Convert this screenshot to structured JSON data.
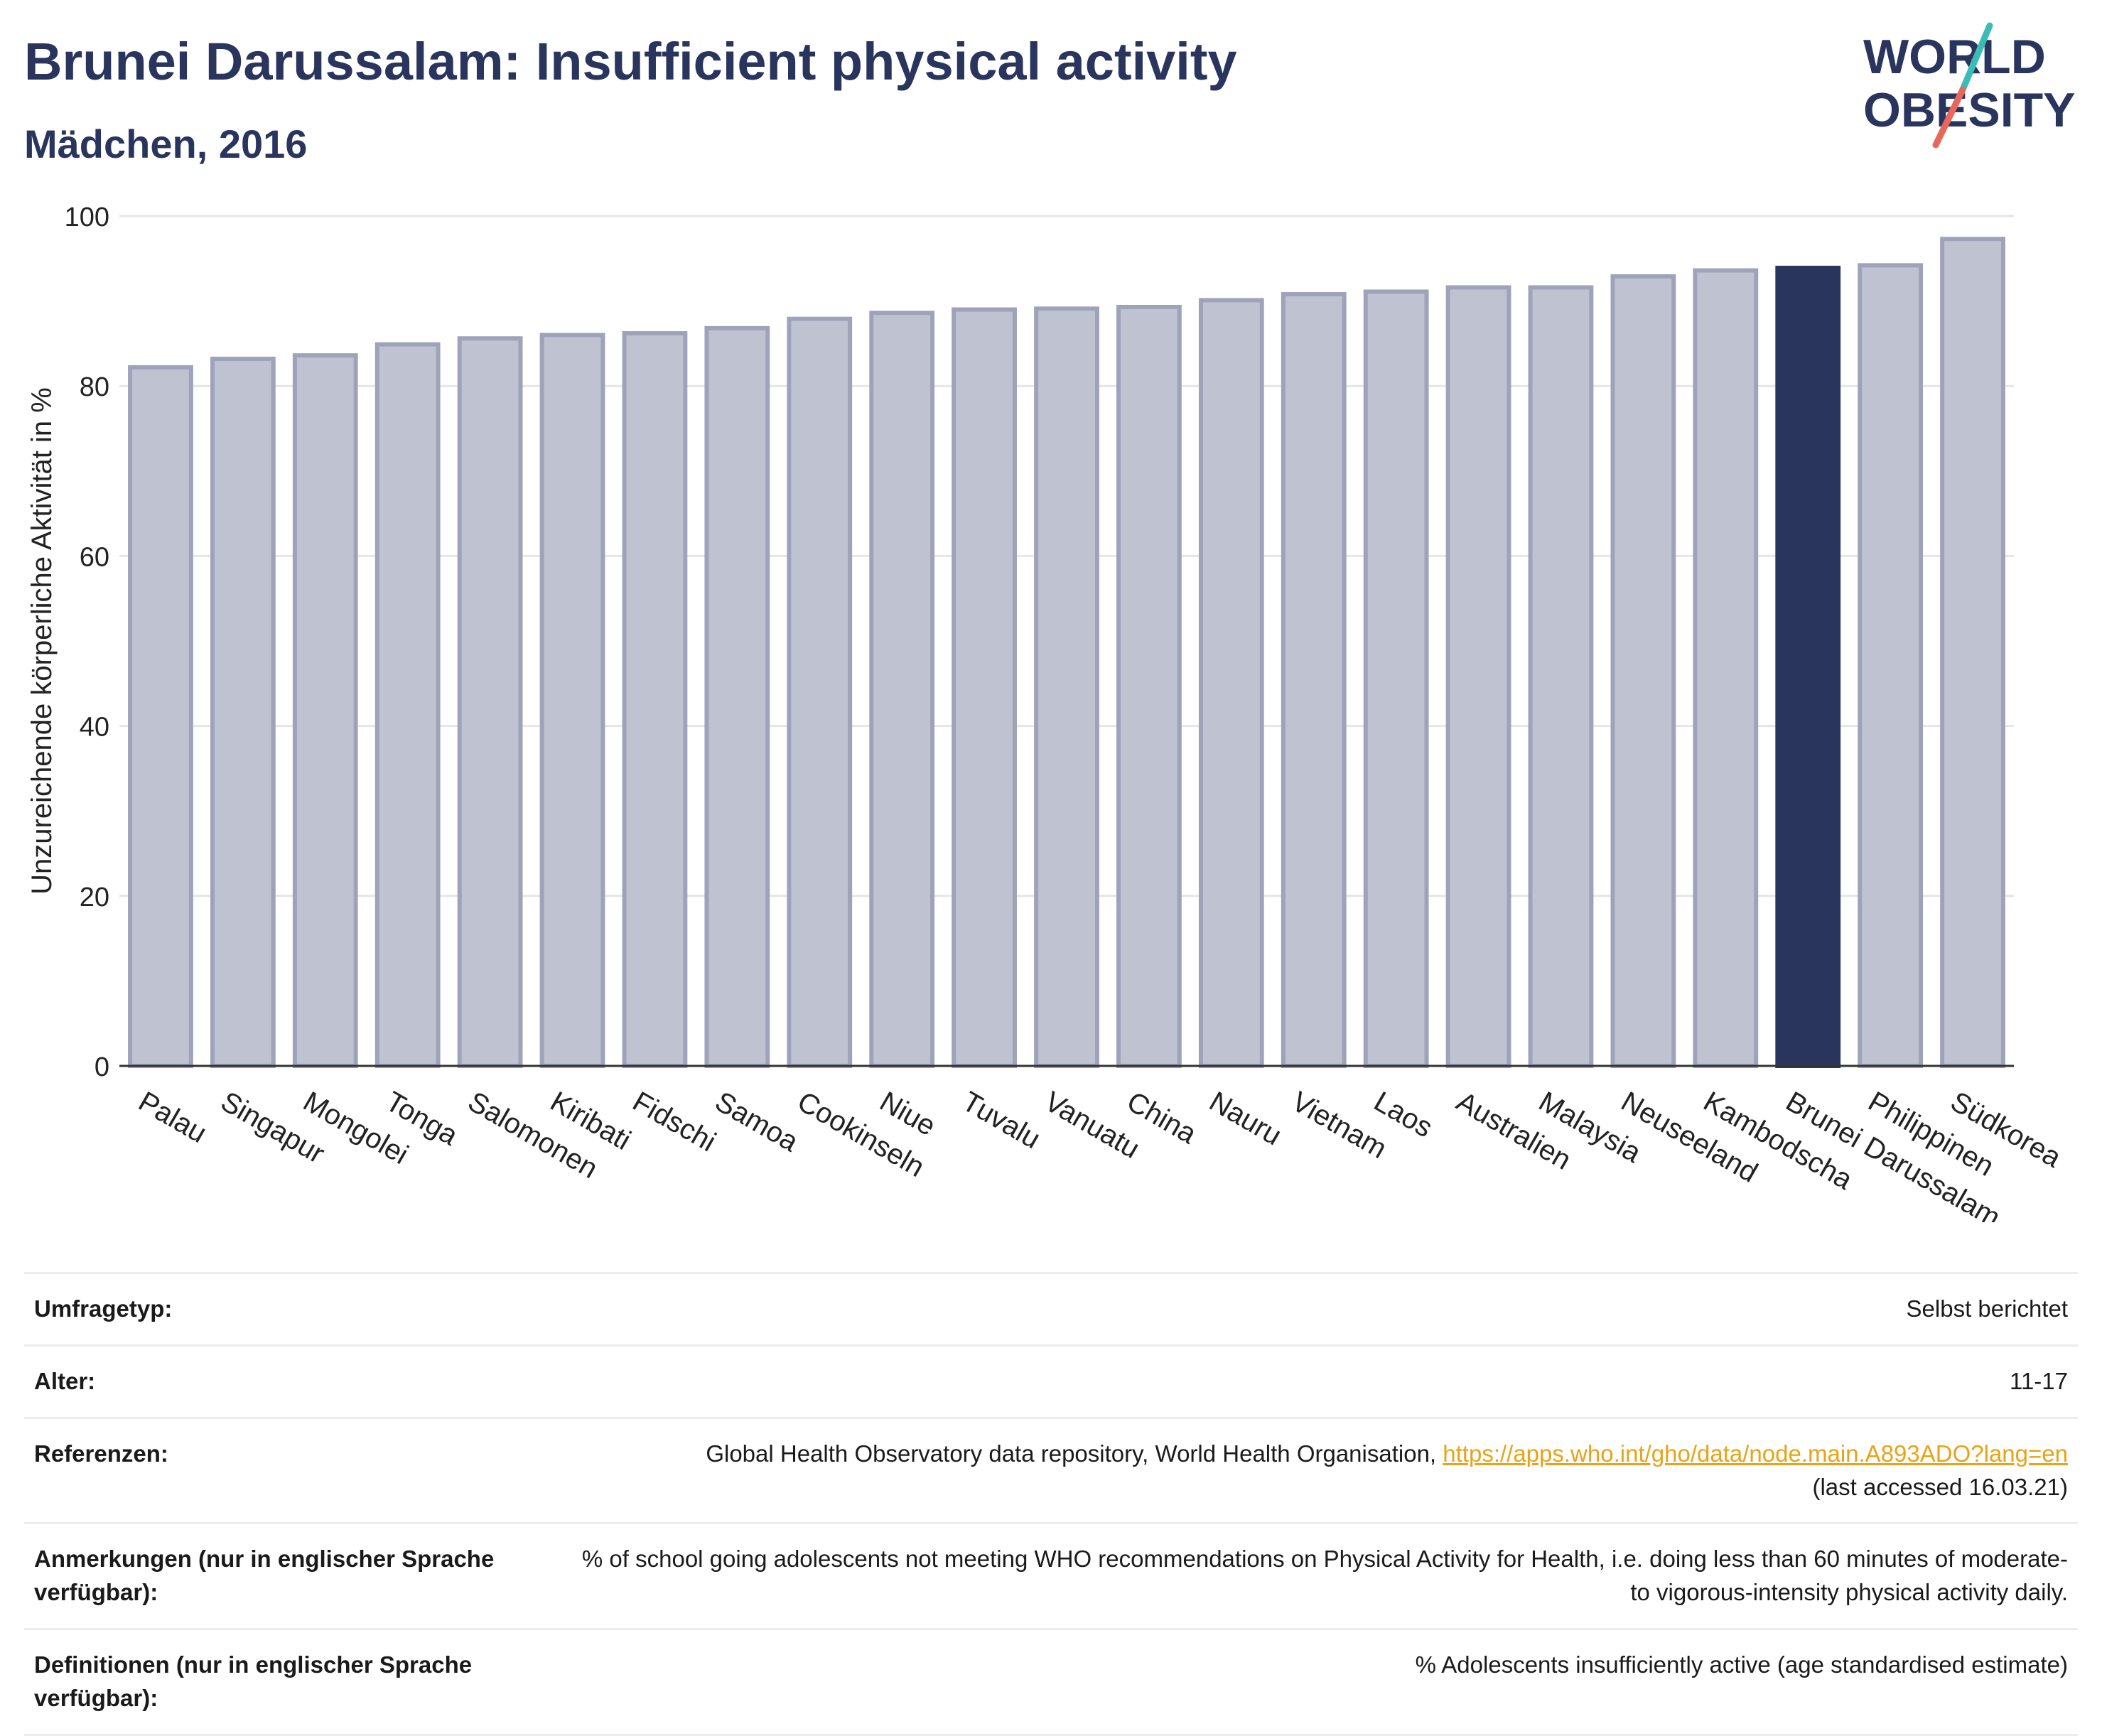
{
  "title": "Brunei Darussalam: Insufficient physical activity",
  "subtitle": "Mädchen, 2016",
  "logo": {
    "line1": "WORLD",
    "line2": "OBESITY",
    "colors": {
      "text": "#2a355e",
      "slash_top": "#3bbdb5",
      "slash_bottom": "#e8675a"
    }
  },
  "colors": {
    "bar_default": "#bfc3d1",
    "bar_border": "#9ea3ba",
    "bar_highlight": "#2a355e",
    "grid": "#e6e6ea",
    "axis": "#333333",
    "link": "#e8a317"
  },
  "chart_data": {
    "type": "bar",
    "title": "Brunei Darussalam: Insufficient physical activity",
    "subtitle": "Mädchen, 2016",
    "xlabel": "",
    "ylabel": "Unzureichende körperliche Aktivität in %",
    "ylim": [
      0,
      100
    ],
    "yticks": [
      0,
      20,
      40,
      60,
      80,
      100
    ],
    "grid": true,
    "highlight": "Brunei Darussalam",
    "categories": [
      "Palau",
      "Singapur",
      "Mongolei",
      "Tonga",
      "Salomonen",
      "Kiribati",
      "Fidschi",
      "Samoa",
      "Cookinseln",
      "Niue",
      "Tuvalu",
      "Vanuatu",
      "China",
      "Nauru",
      "Vietnam",
      "Laos",
      "Australien",
      "Malaysia",
      "Neuseeland",
      "Kambodscha",
      "Brunei Darussalam",
      "Philippinen",
      "Südkorea"
    ],
    "values": [
      82.2,
      83.2,
      83.6,
      84.9,
      85.6,
      86.0,
      86.2,
      86.8,
      87.9,
      88.6,
      89.0,
      89.1,
      89.3,
      90.1,
      90.8,
      91.1,
      91.6,
      91.6,
      92.9,
      93.6,
      93.9,
      94.2,
      97.3
    ]
  },
  "info": {
    "rows": [
      {
        "label": "Umfragetyp:",
        "value": "Selbst berichtet"
      },
      {
        "label": "Alter:",
        "value": "11-17"
      },
      {
        "label": "Referenzen:",
        "value_prefix": "Global Health Observatory data repository, World Health Organisation, ",
        "link": "https://apps.who.int/gho/data/node.main.A893ADO?lang=en",
        "value_suffix": "(last accessed 16.03.21)"
      },
      {
        "label": "Anmerkungen (nur in englischer Sprache verfügbar):",
        "value": "% of school going adolescents not meeting WHO recommendations on Physical Activity for Health, i.e. doing less than 60 minutes of moderate- to vigorous-intensity physical activity daily."
      },
      {
        "label": "Definitionen (nur in englischer Sprache verfügbar):",
        "value": "% Adolescents insufficiently active (age standardised estimate)"
      }
    ]
  }
}
